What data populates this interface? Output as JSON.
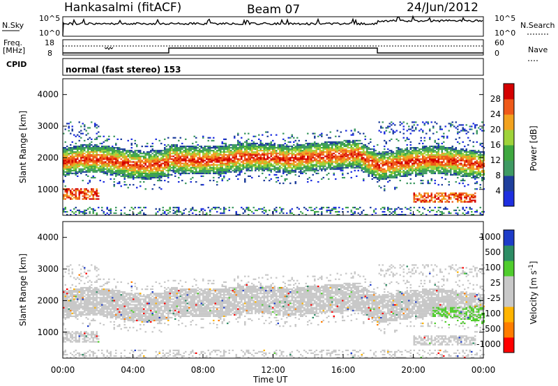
{
  "header": {
    "station": "Hankasalmi (fitACF)",
    "beam": "Beam 07",
    "date": "24/Jun/2012"
  },
  "noise_panel": {
    "left_label": "N.Sky",
    "right_label": "N.Search",
    "ytick_top": "10^5",
    "ytick_bottom": "10^0"
  },
  "freq_panel": {
    "left_label_1": "Freq.",
    "left_label_2": "[MHz]",
    "right_label": "Nave",
    "left_tick_top": "18",
    "left_tick_bottom": "8",
    "right_tick_top": "60",
    "right_tick_bottom": "0"
  },
  "cpid": {
    "label": "CPID",
    "value": "normal (fast stereo) 153"
  },
  "colors": {
    "power_scale": [
      "#1e2fe0",
      "#1f3f9c",
      "#3f9a63",
      "#3fa83f",
      "#9fd33a",
      "#f2a21f",
      "#ef5a1a",
      "#d40000"
    ],
    "velocity_scale": [
      "#ff0000",
      "#ff7d00",
      "#ffb400",
      "#c8c8c8",
      "#c8c8c8",
      "#50cd2d",
      "#2d8c64",
      "#1e3cc8"
    ]
  },
  "chart_data": [
    {
      "type": "heatmap",
      "title": "",
      "xlabel": "Time UT",
      "ylabel": "Slant Range [km]",
      "xlim_hours": [
        0,
        24
      ],
      "ylim_km": [
        180,
        4500
      ],
      "xticks": [
        "00:00",
        "04:00",
        "08:00",
        "12:00",
        "16:00",
        "20:00",
        "00:00"
      ],
      "yticks": [
        1000,
        2000,
        3000,
        4000
      ],
      "colorbar": {
        "label": "Power [dB]",
        "ticks": [
          "4",
          "8",
          "12",
          "16",
          "20",
          "24",
          "28"
        ],
        "range": [
          0,
          32
        ]
      },
      "features": [
        {
          "name": "main echo band",
          "range_km_start": [
            1700,
            2300
          ],
          "peak_db": 28,
          "hours": [
            0,
            24
          ]
        },
        {
          "name": "near-range patch",
          "range_km": [
            700,
            1000
          ],
          "peak_db": 28,
          "hours": [
            0,
            2
          ]
        },
        {
          "name": "near-range patch",
          "range_km": [
            600,
            900
          ],
          "peak_db": 28,
          "hours": [
            20,
            23.5
          ]
        }
      ]
    },
    {
      "type": "heatmap",
      "title": "",
      "xlabel": "Time UT",
      "ylabel": "Slant Range [km]",
      "xlim_hours": [
        0,
        24
      ],
      "ylim_km": [
        180,
        4500
      ],
      "xticks": [
        "00:00",
        "04:00",
        "08:00",
        "12:00",
        "16:00",
        "20:00",
        "00:00"
      ],
      "yticks": [
        1000,
        2000,
        3000,
        4000
      ],
      "colorbar": {
        "label": "Velocity [m s-1]",
        "ticks": [
          "1000",
          "500",
          "100",
          "25",
          "-25",
          "-100",
          "-500",
          "-1000"
        ]
      },
      "features": [
        {
          "name": "ground scatter band",
          "velocity_ms": 0,
          "range_km": [
            1500,
            2400
          ],
          "hours": [
            0,
            24
          ]
        }
      ]
    }
  ],
  "axes_text": {
    "ylabel": "Slant Range [km]",
    "xlabel": "Time UT",
    "power_label": "Power [dB]",
    "velocity_label_1": "Velocity [m s",
    "velocity_label_sup": "-1",
    "velocity_label_2": "]"
  }
}
